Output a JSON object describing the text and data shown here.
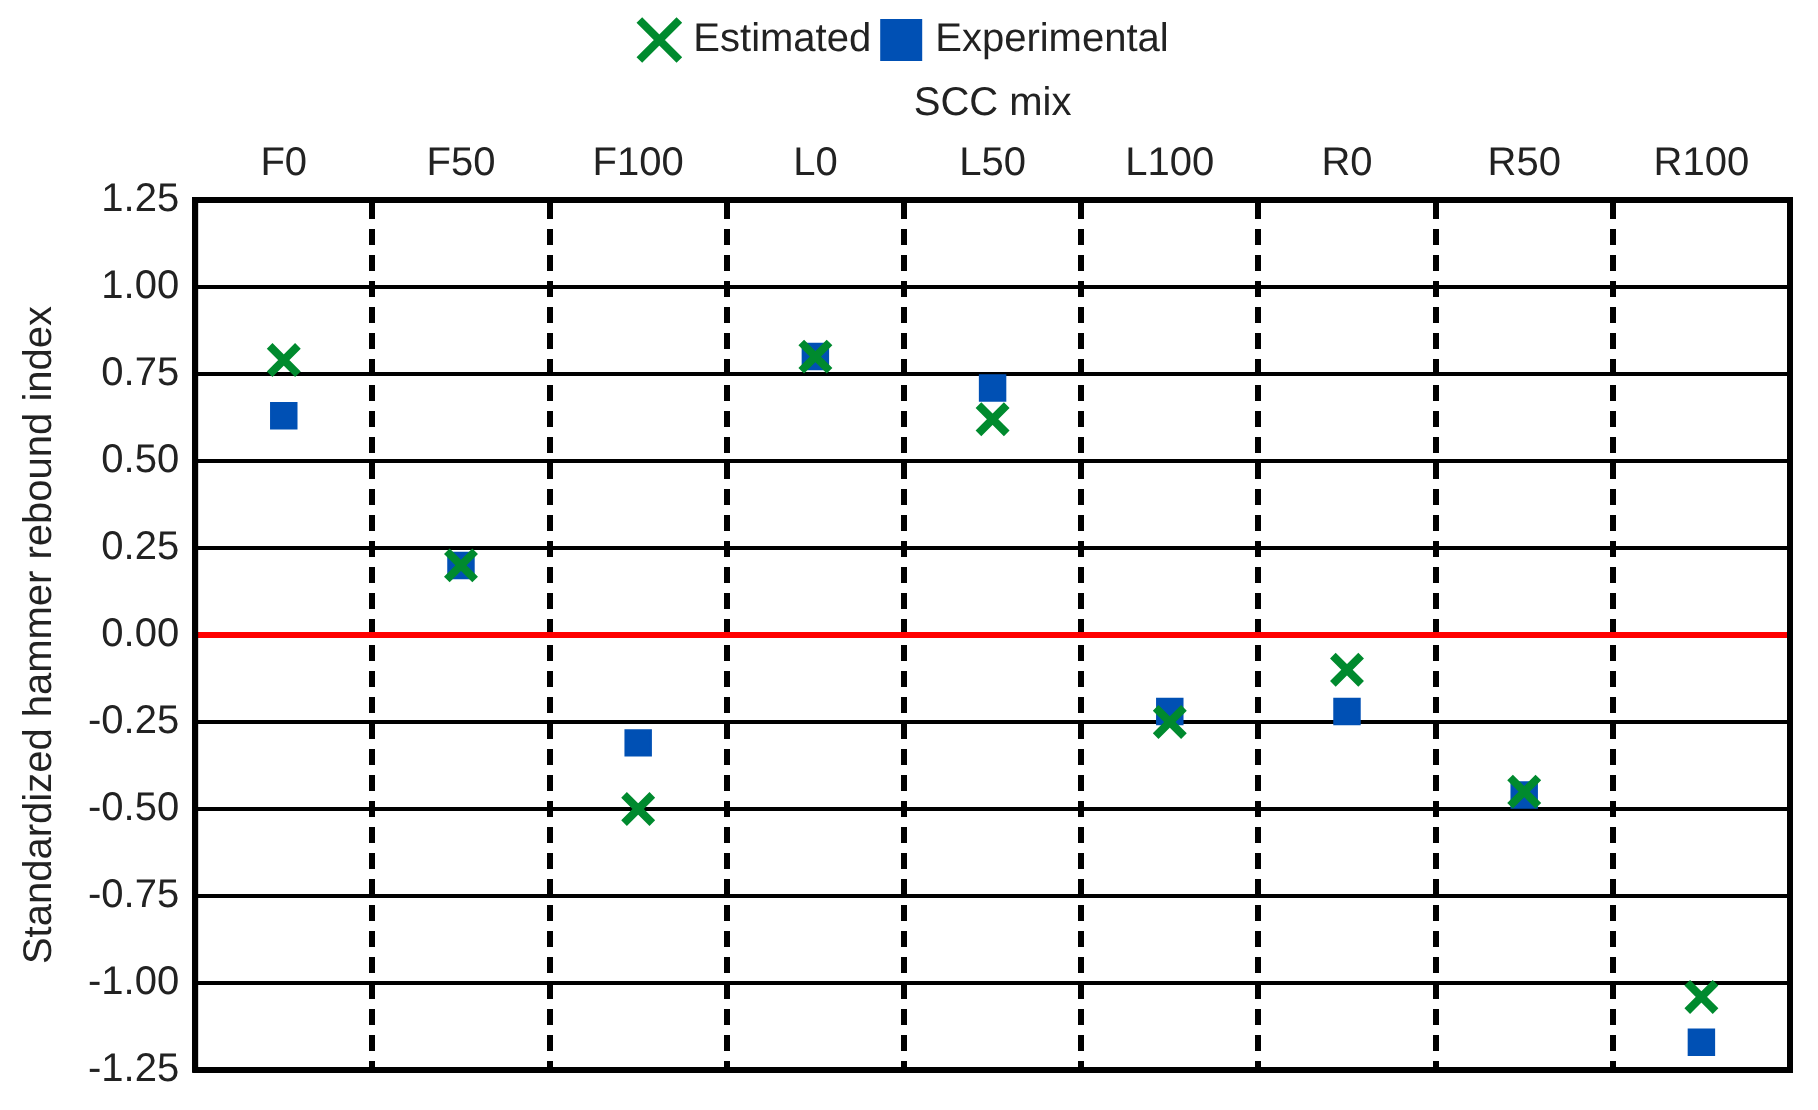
{
  "chart_data": {
    "type": "scatter",
    "xlabel": "SCC mix",
    "ylabel": "Standardized hammer rebound index",
    "categories": [
      "F0",
      "F50",
      "F100",
      "L0",
      "L50",
      "L100",
      "R0",
      "R50",
      "R100"
    ],
    "series": [
      {
        "name": "Experimental",
        "color": "#0050b4",
        "marker": "square",
        "values": [
          0.63,
          0.2,
          -0.31,
          0.8,
          0.71,
          -0.22,
          -0.22,
          -0.46,
          -1.17
        ]
      },
      {
        "name": "Estimated",
        "color": "#008a2e",
        "marker": "cross",
        "values": [
          0.79,
          0.2,
          -0.5,
          0.8,
          0.62,
          -0.25,
          -0.1,
          -0.45,
          -1.04
        ]
      }
    ],
    "ylim": [
      -1.25,
      1.25
    ],
    "yticks": [
      {
        "value": -1.25,
        "label": "-1.25"
      },
      {
        "value": -1,
        "label": "-1.00"
      },
      {
        "value": -0.75,
        "label": "-0.75"
      },
      {
        "value": -0.5,
        "label": "-0.50"
      },
      {
        "value": -0.25,
        "label": "-0.25"
      },
      {
        "value": 0,
        "label": "0.00"
      },
      {
        "value": 0.25,
        "label": "0.25"
      },
      {
        "value": 0.5,
        "label": "0.50"
      },
      {
        "value": 0.75,
        "label": "0.75"
      },
      {
        "value": 1,
        "label": "1.00"
      },
      {
        "value": 1.25,
        "label": "1.25"
      }
    ],
    "ref_lines": [
      {
        "axis": "y",
        "value": 0,
        "color": "#ff0000"
      }
    ],
    "grid": true,
    "legend": "top"
  }
}
